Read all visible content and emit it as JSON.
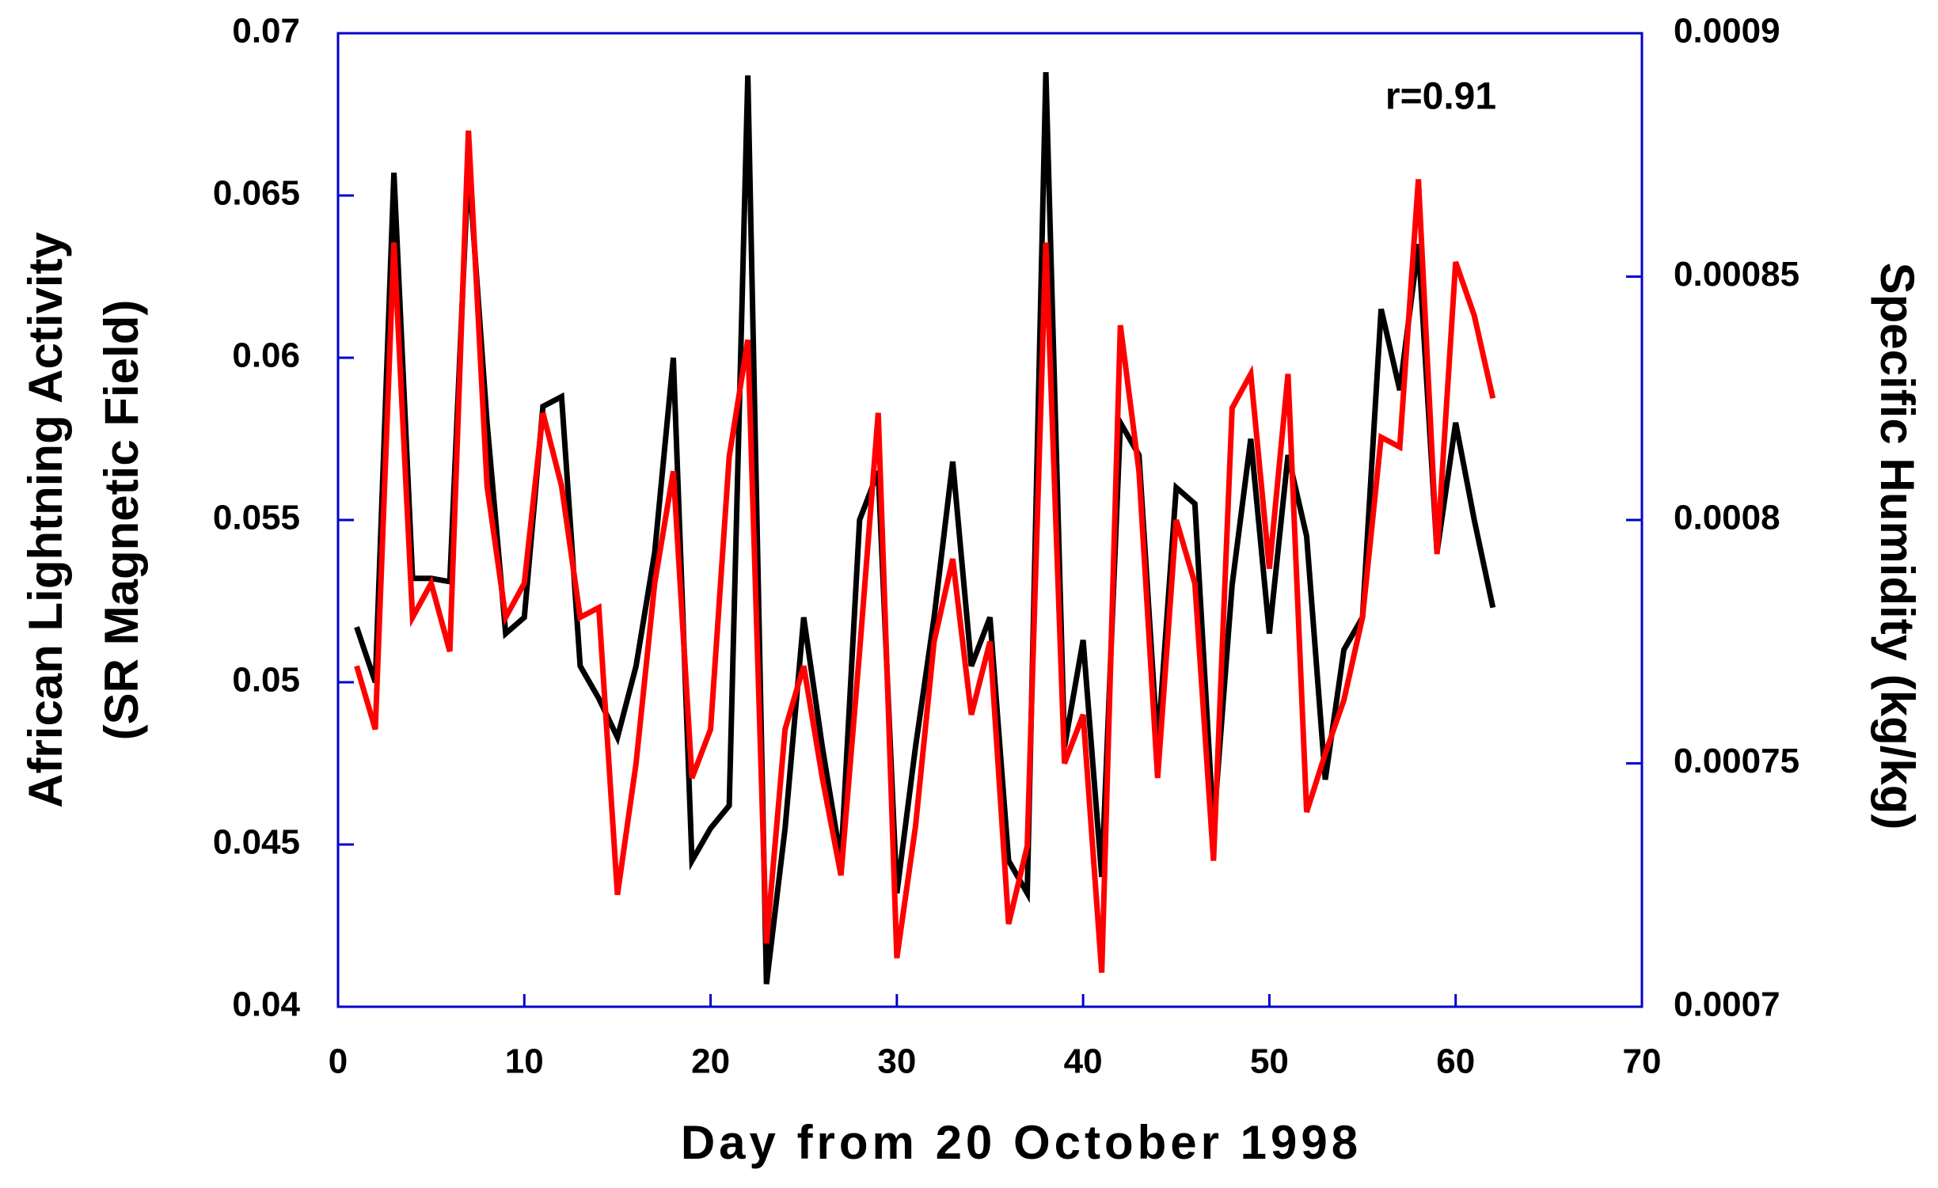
{
  "chart_data": {
    "type": "line",
    "xlabel": "Day from 20 October 1998",
    "ylabel": [
      "African Lightning Activity",
      "(SR Magnetic Field)"
    ],
    "y2label": "Specific Humidity (kg/kg)",
    "annotation": "r=0.91",
    "x": [
      1,
      2,
      3,
      4,
      5,
      6,
      7,
      8,
      9,
      10,
      11,
      12,
      13,
      14,
      15,
      16,
      17,
      18,
      19,
      20,
      21,
      22,
      23,
      24,
      25,
      26,
      27,
      28,
      29,
      30,
      31,
      32,
      33,
      34,
      35,
      36,
      37,
      38,
      39,
      40,
      41,
      42,
      43,
      44,
      45,
      46,
      47,
      48,
      49,
      50,
      51,
      52,
      53,
      54,
      55,
      56,
      57,
      58,
      59,
      60,
      61,
      62
    ],
    "series": [
      {
        "color": "#000000",
        "axis": "y",
        "values": [
          0.0517,
          0.05,
          0.0657,
          0.0532,
          0.0532,
          0.0531,
          0.066,
          0.058,
          0.0515,
          0.052,
          0.0585,
          0.0588,
          0.0505,
          0.0495,
          0.0483,
          0.0505,
          0.054,
          0.06,
          0.0445,
          0.0455,
          0.0462,
          0.0687,
          0.0407,
          0.0455,
          0.052,
          0.048,
          0.0445,
          0.055,
          0.0565,
          0.0435,
          0.048,
          0.052,
          0.0568,
          0.0505,
          0.052,
          0.0445,
          0.0435,
          0.0688,
          0.048,
          0.0513,
          0.044,
          0.058,
          0.057,
          0.048,
          0.056,
          0.0555,
          0.0455,
          0.053,
          0.0575,
          0.0515,
          0.057,
          0.0545,
          0.047,
          0.051,
          0.052,
          0.0615,
          0.059,
          0.0635,
          0.054,
          0.058,
          0.055,
          0.0523
        ]
      },
      {
        "color": "#ff0000",
        "axis": "y2",
        "values": [
          0.00077,
          0.000757,
          0.000857,
          0.00078,
          0.000787,
          0.000773,
          0.00088,
          0.000807,
          0.00078,
          0.000787,
          0.000822,
          0.000807,
          0.00078,
          0.000782,
          0.000723,
          0.00075,
          0.000787,
          0.00081,
          0.000747,
          0.000757,
          0.000813,
          0.000837,
          0.000713,
          0.000757,
          0.00077,
          0.000747,
          0.000727,
          0.000773,
          0.000822,
          0.00071,
          0.000737,
          0.000775,
          0.000792,
          0.00076,
          0.000775,
          0.000717,
          0.000733,
          0.000857,
          0.00075,
          0.00076,
          0.000707,
          0.00084,
          0.00081,
          0.000747,
          0.0008,
          0.000787,
          0.00073,
          0.000823,
          0.00083,
          0.00079,
          0.00083,
          0.00074,
          0.000752,
          0.000763,
          0.00078,
          0.000817,
          0.000815,
          0.00087,
          0.000793,
          0.000853,
          0.000842,
          0.000825
        ]
      }
    ],
    "xlim": [
      0,
      70
    ],
    "xticks": [
      0,
      10,
      20,
      30,
      40,
      50,
      60,
      70
    ],
    "ylim": [
      0.04,
      0.07
    ],
    "yticks": [
      0.04,
      0.045,
      0.05,
      0.055,
      0.06,
      0.065,
      0.07
    ],
    "y2lim": [
      0.0007,
      0.0009
    ],
    "y2ticks": [
      0.0007,
      0.00075,
      0.0008,
      0.00085,
      0.0009
    ],
    "axis_color": "#0000cc"
  }
}
